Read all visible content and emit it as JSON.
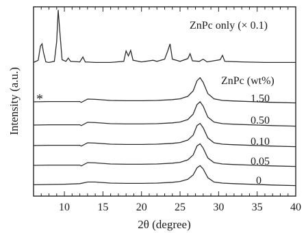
{
  "chart_data": {
    "type": "line",
    "xlabel": "2θ (degree)",
    "ylabel": "Intensity (a.u.)",
    "xlim": [
      6,
      40
    ],
    "xticks": [
      "10",
      "15",
      "20",
      "25",
      "30",
      "35",
      "40"
    ],
    "yticks": [],
    "legend_title": "ZnPc (wt%)",
    "marker": "*",
    "series": [
      {
        "name": "ZnPc only (× 0.1)",
        "points": [
          [
            6,
            0.2
          ],
          [
            6.6,
            0.6
          ],
          [
            6.9,
            3.2
          ],
          [
            7.1,
            3.6
          ],
          [
            7.3,
            2.0
          ],
          [
            7.6,
            0.3
          ],
          [
            8,
            0.2
          ],
          [
            8.7,
            0.4
          ],
          [
            9.0,
            4.0
          ],
          [
            9.2,
            9.8
          ],
          [
            9.4,
            6.0
          ],
          [
            9.7,
            0.7
          ],
          [
            10.2,
            0.4
          ],
          [
            10.5,
            1.0
          ],
          [
            10.8,
            0.4
          ],
          [
            12.0,
            0.3
          ],
          [
            12.4,
            1.2
          ],
          [
            12.7,
            0.3
          ],
          [
            14,
            0.2
          ],
          [
            16,
            0.2
          ],
          [
            17.7,
            0.4
          ],
          [
            18.0,
            2.3
          ],
          [
            18.3,
            1.4
          ],
          [
            18.6,
            2.4
          ],
          [
            18.9,
            0.6
          ],
          [
            20,
            0.3
          ],
          [
            21.5,
            0.6
          ],
          [
            22,
            0.4
          ],
          [
            23.0,
            0.8
          ],
          [
            23.4,
            2.3
          ],
          [
            23.7,
            3.6
          ],
          [
            24.0,
            0.8
          ],
          [
            25,
            0.4
          ],
          [
            26.0,
            0.9
          ],
          [
            26.3,
            1.8
          ],
          [
            26.6,
            0.5
          ],
          [
            27.5,
            0.4
          ],
          [
            28.0,
            0.8
          ],
          [
            28.5,
            0.3
          ],
          [
            30.2,
            0.7
          ],
          [
            30.5,
            1.5
          ],
          [
            30.8,
            0.4
          ],
          [
            33,
            0.3
          ],
          [
            36,
            0.2
          ],
          [
            40,
            0.2
          ]
        ]
      },
      {
        "name": "1.50",
        "points": [
          [
            6,
            0.5
          ],
          [
            8,
            0.6
          ],
          [
            10,
            0.6
          ],
          [
            12,
            0.6
          ],
          [
            12.2,
            0.3
          ],
          [
            13,
            1.5
          ],
          [
            14,
            1.4
          ],
          [
            16,
            1.0
          ],
          [
            18,
            0.9
          ],
          [
            20,
            0.9
          ],
          [
            22,
            1.0
          ],
          [
            24,
            1.3
          ],
          [
            25,
            1.6
          ],
          [
            26,
            2.5
          ],
          [
            26.7,
            4.5
          ],
          [
            27.2,
            8.2
          ],
          [
            27.6,
            9.3
          ],
          [
            28.0,
            7.6
          ],
          [
            28.6,
            3.5
          ],
          [
            29.4,
            1.6
          ],
          [
            30.5,
            1.0
          ],
          [
            32,
            0.8
          ],
          [
            35,
            0.5
          ],
          [
            37,
            0.3
          ],
          [
            40,
            0.1
          ]
        ]
      },
      {
        "name": "0.50",
        "points": [
          [
            6,
            0.5
          ],
          [
            8,
            0.6
          ],
          [
            10,
            0.6
          ],
          [
            12,
            0.6
          ],
          [
            12.2,
            0.3
          ],
          [
            13,
            1.5
          ],
          [
            14,
            1.4
          ],
          [
            16,
            1.0
          ],
          [
            18,
            0.9
          ],
          [
            20,
            0.9
          ],
          [
            22,
            1.0
          ],
          [
            24,
            1.3
          ],
          [
            25,
            1.6
          ],
          [
            26,
            2.5
          ],
          [
            26.7,
            4.5
          ],
          [
            27.2,
            8.0
          ],
          [
            27.6,
            9.0
          ],
          [
            28.0,
            7.4
          ],
          [
            28.6,
            3.4
          ],
          [
            29.4,
            1.6
          ],
          [
            30.5,
            1.0
          ],
          [
            32,
            0.8
          ],
          [
            35,
            0.5
          ],
          [
            37,
            0.3
          ],
          [
            40,
            0.1
          ]
        ]
      },
      {
        "name": "0.10",
        "points": [
          [
            6,
            0.5
          ],
          [
            8,
            0.6
          ],
          [
            10,
            0.6
          ],
          [
            12,
            0.6
          ],
          [
            12.2,
            0.3
          ],
          [
            13,
            1.5
          ],
          [
            14,
            1.4
          ],
          [
            16,
            1.0
          ],
          [
            18,
            0.9
          ],
          [
            20,
            0.9
          ],
          [
            22,
            1.0
          ],
          [
            24,
            1.3
          ],
          [
            25,
            1.6
          ],
          [
            26,
            2.5
          ],
          [
            26.7,
            4.3
          ],
          [
            27.2,
            7.8
          ],
          [
            27.6,
            8.6
          ],
          [
            28.0,
            7.0
          ],
          [
            28.6,
            3.3
          ],
          [
            29.4,
            1.5
          ],
          [
            30.5,
            1.0
          ],
          [
            32,
            0.8
          ],
          [
            35,
            0.5
          ],
          [
            37,
            0.3
          ],
          [
            40,
            0.1
          ]
        ]
      },
      {
        "name": "0.05",
        "points": [
          [
            6,
            0.5
          ],
          [
            8,
            0.6
          ],
          [
            10,
            0.6
          ],
          [
            12,
            0.6
          ],
          [
            12.2,
            0.3
          ],
          [
            13,
            1.5
          ],
          [
            14,
            1.4
          ],
          [
            16,
            1.0
          ],
          [
            18,
            0.9
          ],
          [
            20,
            0.9
          ],
          [
            22,
            1.0
          ],
          [
            24,
            1.3
          ],
          [
            25,
            1.6
          ],
          [
            26,
            2.5
          ],
          [
            26.7,
            4.3
          ],
          [
            27.2,
            7.6
          ],
          [
            27.6,
            8.4
          ],
          [
            28.0,
            6.8
          ],
          [
            28.6,
            3.2
          ],
          [
            29.4,
            1.5
          ],
          [
            30.5,
            1.0
          ],
          [
            32,
            0.8
          ],
          [
            35,
            0.5
          ],
          [
            37,
            0.3
          ],
          [
            40,
            0.1
          ]
        ]
      },
      {
        "name": "0",
        "points": [
          [
            6,
            0.4
          ],
          [
            8,
            0.5
          ],
          [
            10,
            0.6
          ],
          [
            12,
            0.8
          ],
          [
            13,
            1.4
          ],
          [
            14,
            1.4
          ],
          [
            16,
            1.0
          ],
          [
            18,
            0.9
          ],
          [
            20,
            0.9
          ],
          [
            22,
            1.0
          ],
          [
            24,
            1.3
          ],
          [
            25,
            1.6
          ],
          [
            26,
            2.4
          ],
          [
            26.7,
            4.0
          ],
          [
            27.2,
            6.6
          ],
          [
            27.6,
            7.4
          ],
          [
            28.0,
            6.2
          ],
          [
            28.6,
            3.0
          ],
          [
            29.4,
            1.4
          ],
          [
            30.5,
            1.0
          ],
          [
            32,
            0.8
          ],
          [
            35,
            0.5
          ],
          [
            37,
            0.3
          ],
          [
            40,
            0.1
          ]
        ]
      }
    ]
  }
}
